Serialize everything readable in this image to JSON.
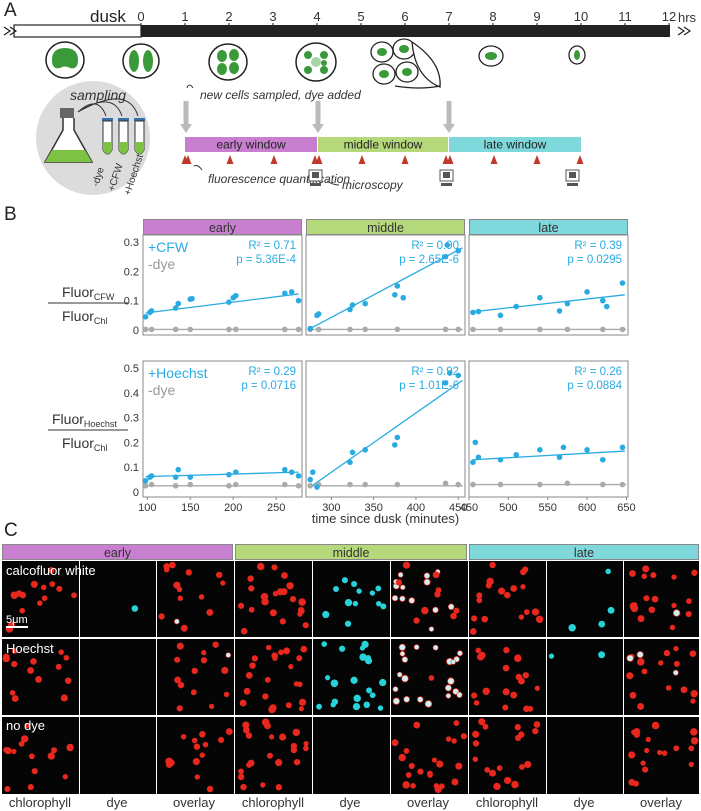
{
  "panels": {
    "a": "A",
    "b": "B",
    "c": "C"
  },
  "colors": {
    "early": "#c97fcf",
    "middle": "#b5d97a",
    "late": "#7fd9dc",
    "cell": "#3a9a3a",
    "dye_blue": "#29abe2",
    "grey": "#aaaaaa",
    "triangle": "#c0392b"
  },
  "timeline": {
    "dusk_label": "dusk",
    "hours": [
      "0",
      "1",
      "2",
      "3",
      "4",
      "5",
      "6",
      "7",
      "8",
      "9",
      "10",
      "11",
      "12"
    ],
    "hrs_label": "hrs",
    "sampling_title": "sampling",
    "tube_labels": [
      "-dye",
      "+CFW",
      "+Hoechst"
    ],
    "annotation_new_cells": "new cells sampled, dye added",
    "annotation_fluor": "fluorescence quantification",
    "annotation_microscopy": "microscopy",
    "windows": [
      "early window",
      "middle window",
      "late window"
    ]
  },
  "chart_data": [
    {
      "type": "scatter",
      "panel": "early",
      "row": "CFW",
      "ylim": [
        0,
        0.3
      ],
      "yticks": [
        "0",
        "0.1",
        "0.2",
        "0.3"
      ],
      "stats": {
        "r2": "R² = 0.71",
        "p": "p = 5.36E-4"
      },
      "legend": [
        "+CFW",
        "-dye"
      ],
      "dye_points": [
        [
          98,
          0.045
        ],
        [
          103,
          0.06
        ],
        [
          105,
          0.065
        ],
        [
          133,
          0.075
        ],
        [
          136,
          0.09
        ],
        [
          150,
          0.105
        ],
        [
          152,
          0.107
        ],
        [
          195,
          0.095
        ],
        [
          200,
          0.11
        ],
        [
          203,
          0.117
        ],
        [
          260,
          0.125
        ],
        [
          268,
          0.13
        ],
        [
          276,
          0.1
        ]
      ],
      "nodye_points": [
        [
          98,
          0.002
        ],
        [
          105,
          0.002
        ],
        [
          133,
          0.002
        ],
        [
          150,
          0.002
        ],
        [
          195,
          0.002
        ],
        [
          203,
          0.002
        ],
        [
          260,
          0.002
        ],
        [
          276,
          0.002
        ]
      ],
      "fit": [
        [
          98,
          0.058
        ],
        [
          276,
          0.123
        ]
      ]
    },
    {
      "type": "scatter",
      "panel": "middle",
      "row": "CFW",
      "ylim": [
        0,
        0.3
      ],
      "stats": {
        "r2": "R² = 0.90",
        "p": "p = 2.65E-6"
      },
      "dye_points": [
        [
          275,
          0.005
        ],
        [
          283,
          0.05
        ],
        [
          285,
          0.055
        ],
        [
          322,
          0.07
        ],
        [
          325,
          0.085
        ],
        [
          340,
          0.09
        ],
        [
          375,
          0.12
        ],
        [
          378,
          0.15
        ],
        [
          385,
          0.11
        ],
        [
          435,
          0.25
        ],
        [
          437,
          0.29
        ],
        [
          450,
          0.27
        ]
      ],
      "nodye_points": [
        [
          275,
          0.002
        ],
        [
          285,
          0.002
        ],
        [
          322,
          0.002
        ],
        [
          340,
          0.002
        ],
        [
          378,
          0.002
        ],
        [
          435,
          0.002
        ],
        [
          450,
          0.002
        ]
      ],
      "fit": [
        [
          275,
          0.005
        ],
        [
          455,
          0.28
        ]
      ]
    },
    {
      "type": "scatter",
      "panel": "late",
      "row": "CFW",
      "ylim": [
        0,
        0.3
      ],
      "stats": {
        "r2": "R² = 0.39",
        "p": "p = 0.0295"
      },
      "dye_points": [
        [
          455,
          0.06
        ],
        [
          462,
          0.063
        ],
        [
          490,
          0.05
        ],
        [
          510,
          0.08
        ],
        [
          540,
          0.11
        ],
        [
          565,
          0.065
        ],
        [
          575,
          0.09
        ],
        [
          600,
          0.13
        ],
        [
          620,
          0.1
        ],
        [
          625,
          0.08
        ],
        [
          645,
          0.16
        ]
      ],
      "nodye_points": [
        [
          455,
          0.002
        ],
        [
          490,
          0.002
        ],
        [
          540,
          0.002
        ],
        [
          575,
          0.002
        ],
        [
          620,
          0.002
        ],
        [
          645,
          0.002
        ]
      ],
      "fit": [
        [
          455,
          0.062
        ],
        [
          648,
          0.12
        ]
      ]
    },
    {
      "type": "scatter",
      "panel": "early",
      "row": "Hoechst",
      "ylim": [
        0,
        0.5
      ],
      "yticks": [
        "0",
        "0.1",
        "0.2",
        "0.3",
        "0.4",
        "0.5"
      ],
      "stats": {
        "r2": "R² = 0.29",
        "p": "p = 0.0716"
      },
      "legend": [
        "+Hoechst",
        "-dye"
      ],
      "dye_points": [
        [
          98,
          0.045
        ],
        [
          103,
          0.06
        ],
        [
          105,
          0.065
        ],
        [
          133,
          0.06
        ],
        [
          136,
          0.09
        ],
        [
          150,
          0.06
        ],
        [
          195,
          0.07
        ],
        [
          203,
          0.08
        ],
        [
          260,
          0.09
        ],
        [
          268,
          0.08
        ],
        [
          276,
          0.065
        ]
      ],
      "nodye_points": [
        [
          98,
          0.025
        ],
        [
          105,
          0.03
        ],
        [
          133,
          0.025
        ],
        [
          150,
          0.03
        ],
        [
          195,
          0.025
        ],
        [
          203,
          0.03
        ],
        [
          260,
          0.03
        ],
        [
          276,
          0.025
        ]
      ],
      "fit": [
        [
          98,
          0.062
        ],
        [
          276,
          0.08
        ]
      ]
    },
    {
      "type": "scatter",
      "panel": "middle",
      "row": "Hoechst",
      "ylim": [
        0,
        0.5
      ],
      "stats": {
        "r2": "R² = 0.92",
        "p": "p = 1.01E-6"
      },
      "dye_points": [
        [
          275,
          0.05
        ],
        [
          278,
          0.08
        ],
        [
          283,
          0.02
        ],
        [
          322,
          0.12
        ],
        [
          325,
          0.16
        ],
        [
          340,
          0.17
        ],
        [
          375,
          0.19
        ],
        [
          378,
          0.22
        ],
        [
          435,
          0.44
        ],
        [
          440,
          0.48
        ],
        [
          450,
          0.47
        ]
      ],
      "nodye_points": [
        [
          275,
          0.025
        ],
        [
          285,
          0.03
        ],
        [
          322,
          0.03
        ],
        [
          340,
          0.03
        ],
        [
          378,
          0.03
        ],
        [
          435,
          0.035
        ],
        [
          450,
          0.03
        ]
      ],
      "fit": [
        [
          275,
          0.02
        ],
        [
          455,
          0.45
        ]
      ]
    },
    {
      "type": "scatter",
      "panel": "late",
      "row": "Hoechst",
      "ylim": [
        0,
        0.5
      ],
      "stats": {
        "r2": "R² = 0.26",
        "p": "p = 0.0884"
      },
      "dye_points": [
        [
          455,
          0.12
        ],
        [
          458,
          0.2
        ],
        [
          462,
          0.14
        ],
        [
          490,
          0.13
        ],
        [
          510,
          0.15
        ],
        [
          540,
          0.17
        ],
        [
          565,
          0.14
        ],
        [
          570,
          0.18
        ],
        [
          600,
          0.17
        ],
        [
          620,
          0.13
        ],
        [
          645,
          0.18
        ]
      ],
      "nodye_points": [
        [
          455,
          0.03
        ],
        [
          490,
          0.03
        ],
        [
          540,
          0.03
        ],
        [
          575,
          0.035
        ],
        [
          620,
          0.03
        ],
        [
          645,
          0.03
        ]
      ],
      "fit": [
        [
          455,
          0.13
        ],
        [
          648,
          0.165
        ]
      ]
    }
  ],
  "plot_b": {
    "headers": [
      "early",
      "middle",
      "late"
    ],
    "xticks_early": [
      "100",
      "150",
      "200",
      "250"
    ],
    "xticks_middle": [
      "300",
      "350",
      "400",
      "450"
    ],
    "xticks_late": [
      "450",
      "500",
      "550",
      "600",
      "650"
    ],
    "xlabel": "time since dusk (minutes)",
    "ylabel_cfw_main": "Fluor",
    "ylabel_cfw_sub": "CFW",
    "ylabel_hoe_main": "Fluor",
    "ylabel_hoe_sub": "Hoechst",
    "ylabel_den_main": "Fluor",
    "ylabel_den_sub": "Chl"
  },
  "panel_c": {
    "headers": [
      "early",
      "middle",
      "late"
    ],
    "row_labels": [
      "calcofluor white",
      "Hoechst",
      "no dye"
    ],
    "scale_label": "5μm",
    "col_labels": [
      "chlorophyll",
      "dye",
      "overlay",
      "chlorophyll",
      "dye",
      "overlay",
      "chlorophyll",
      "dye",
      "overlay"
    ]
  }
}
